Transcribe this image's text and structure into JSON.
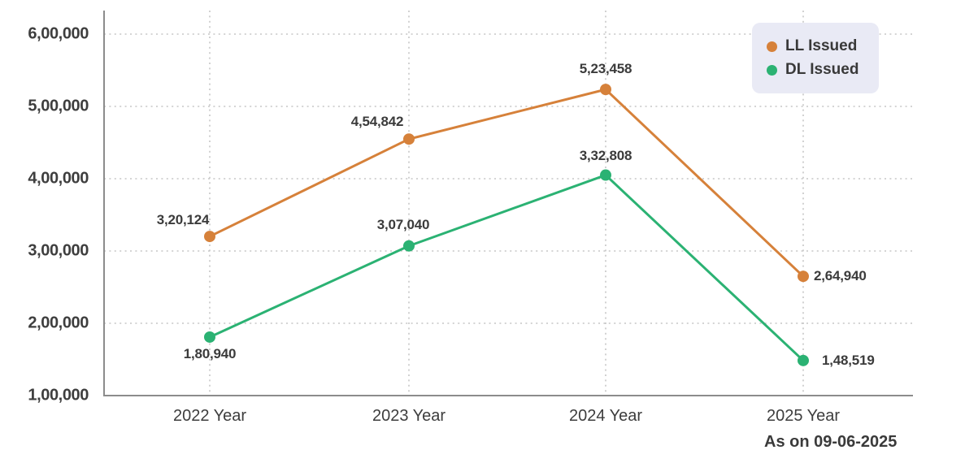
{
  "chart_data": {
    "type": "line",
    "categories": [
      "2022 Year",
      "2023 Year",
      "2024 Year",
      "2025 Year"
    ],
    "series": [
      {
        "name": "LL Issued",
        "color": "#d6813a",
        "values": [
          320124,
          454842,
          523458,
          264940
        ],
        "value_labels": [
          "3,20,124",
          "4,54,842",
          "5,23,458",
          "2,64,940"
        ]
      },
      {
        "name": "DL Issued",
        "color": "#2bb273",
        "values": [
          180940,
          307040,
          332808,
          148519
        ],
        "value_labels": [
          "1,80,940",
          "3,07,040",
          "3,32,808",
          "1,48,519"
        ]
      }
    ],
    "y_axis": {
      "min": 100000,
      "max": 600000,
      "tick_step": 100000,
      "tick_labels": [
        "1,00,000",
        "2,00,000",
        "3,00,000",
        "4,00,000",
        "5,00,000",
        "6,00,000"
      ]
    },
    "grid": {
      "style": "dotted",
      "horizontal": true,
      "vertical": true
    },
    "legend": {
      "position": "top-right",
      "items": [
        {
          "label": "LL Issued",
          "color": "#d6813a"
        },
        {
          "label": "DL Issued",
          "color": "#2bb273"
        }
      ]
    },
    "footnote": "As on 09-06-2025",
    "plot_anomalies": [
      {
        "series": "DL Issued",
        "category": "2024 Year",
        "rendered_at_value": 405000
      }
    ],
    "style_colors": {
      "axis_line": "#8c8c8c",
      "grid_line": "#c6c6c6",
      "label_text": "#3b3b3b",
      "legend_background": "#e9eaf5"
    }
  }
}
